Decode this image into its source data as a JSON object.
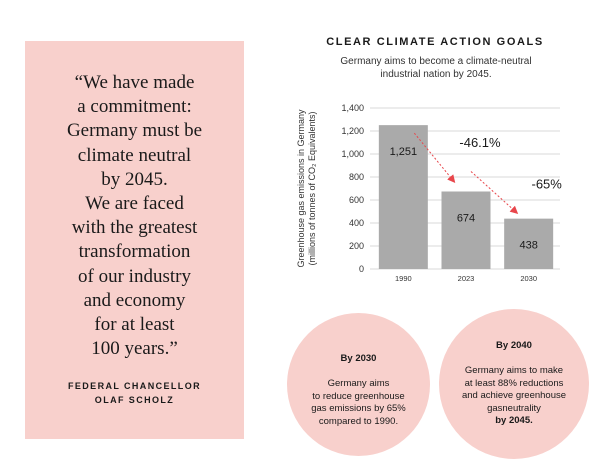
{
  "quote": {
    "text": "“We have made\na commitment:\nGermany must be\nclimate neutral\nby 2045.\nWe are faced\nwith the greatest\ntransformation\nof our industry\nand economy\nfor at least\n100 years.”",
    "attribution": "FEDERAL CHANCELLOR\nOLAF SCHOLZ"
  },
  "chart_data": {
    "type": "bar",
    "title": "CLEAR CLIMATE ACTION GOALS",
    "subtitle": "Germany aims to become a climate-neutral\nindustrial nation by 2045.",
    "ylabel": "Greenhouse gas emissions in Germany\n(millions of tonnes of CO₂ Equivalents)",
    "categories": [
      "1990",
      "2023",
      "2030"
    ],
    "values": [
      1251,
      674,
      438
    ],
    "value_labels": [
      "1,251",
      "674",
      "438"
    ],
    "ylim": [
      0,
      1400
    ],
    "yticks": [
      0,
      200,
      400,
      600,
      800,
      1000,
      1200,
      1400
    ],
    "ytick_labels": [
      "0",
      "200",
      "400",
      "600",
      "800",
      "1,000",
      "1,200",
      "1,400"
    ],
    "annotations": [
      "-46.1%",
      "-65%"
    ],
    "grid": true,
    "colors": {
      "bar": "#aaaaaa",
      "grid": "#cccccc",
      "arrow": "#e8464b"
    }
  },
  "circles": [
    {
      "heading": "By 2030",
      "body": "Germany aims\nto reduce greenhouse\ngas emissions by 65%\ncompared to 1990."
    },
    {
      "heading": "By 2040",
      "body": "Germany aims to make\nat least 88% reductions\nand achieve greenhouse\ngasneutrality",
      "tail": "by 2045."
    }
  ],
  "colors": {
    "panel": "#f8d0cc"
  }
}
